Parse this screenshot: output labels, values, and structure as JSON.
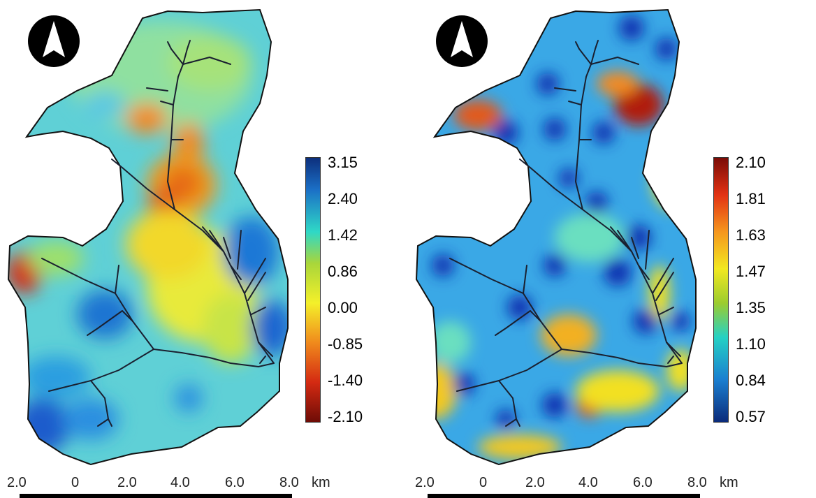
{
  "panels": [
    {
      "legend": {
        "labels": [
          "3.15",
          "2.40",
          "1.42",
          "0.86",
          "0.00",
          "-0.85",
          "-1.40",
          "-2.10"
        ],
        "colors": [
          "#0d2f7c",
          "#1b8fd2",
          "#2fd8c6",
          "#a9d63a",
          "#f4f02a",
          "#f08a1c",
          "#d42a12",
          "#6e0c06"
        ]
      },
      "scale_bar": {
        "ticks": [
          "2.0",
          "0",
          "2.0",
          "4.0",
          "6.0",
          "8.0"
        ],
        "unit": "km"
      },
      "north_arrow": "north-arrow-icon"
    },
    {
      "legend": {
        "labels": [
          "2.10",
          "1.81",
          "1.63",
          "1.47",
          "1.35",
          "1.10",
          "0.84",
          "0.57"
        ],
        "colors": [
          "#7a0c06",
          "#e23214",
          "#f5961e",
          "#f2e820",
          "#9ccc2e",
          "#25d1c4",
          "#1a7fd0",
          "#0b2b7a"
        ]
      },
      "scale_bar": {
        "ticks": [
          "2.0",
          "0",
          "2.0",
          "4.0",
          "6.0",
          "8.0"
        ],
        "unit": "km"
      },
      "north_arrow": "north-arrow-icon"
    }
  ]
}
